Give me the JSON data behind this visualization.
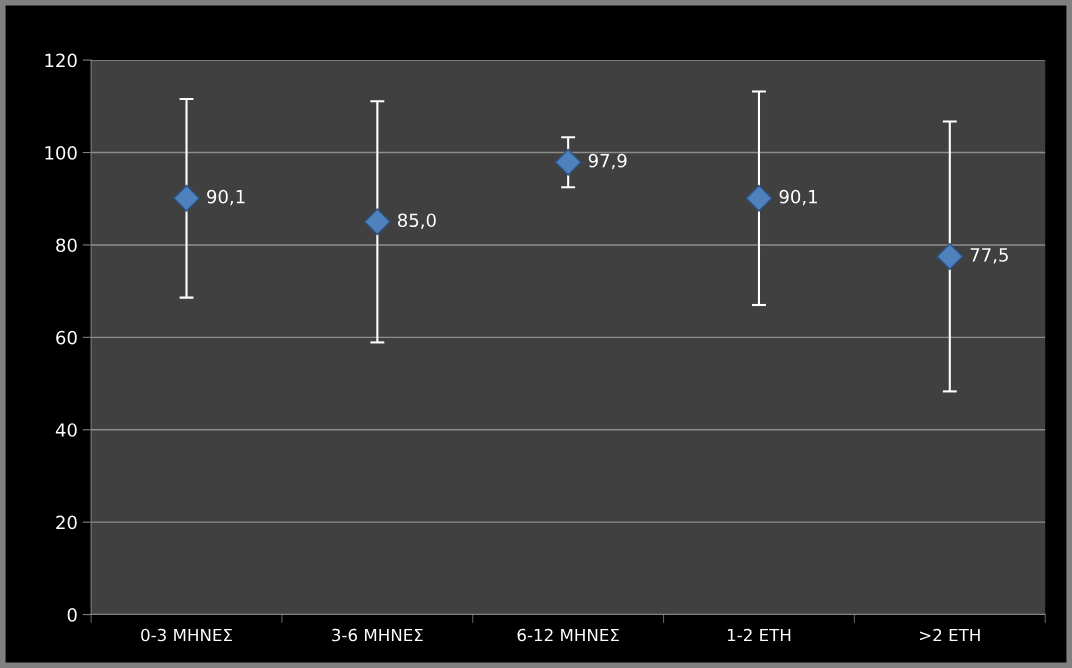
{
  "chart_data": {
    "type": "scatter",
    "categories": [
      "0-3 ΜΗΝΕΣ",
      "3-6 ΜΗΝΕΣ",
      "6-12 ΜΗΝΕΣ",
      "1-2 ΕΤΗ",
      ">2 ΕΤΗ"
    ],
    "values": [
      90.1,
      85.0,
      97.9,
      90.1,
      77.5
    ],
    "errors": [
      21.5,
      26.1,
      5.4,
      23.1,
      29.2
    ],
    "value_labels": [
      "90,1",
      "85,0",
      "97,9",
      "90,1",
      "77,5"
    ],
    "color": "#4f81bd",
    "marker": "diamond",
    "ylim": [
      0,
      120
    ],
    "yticks": [
      0,
      20,
      40,
      60,
      80,
      100,
      120
    ],
    "grid": "y",
    "legend": false
  }
}
